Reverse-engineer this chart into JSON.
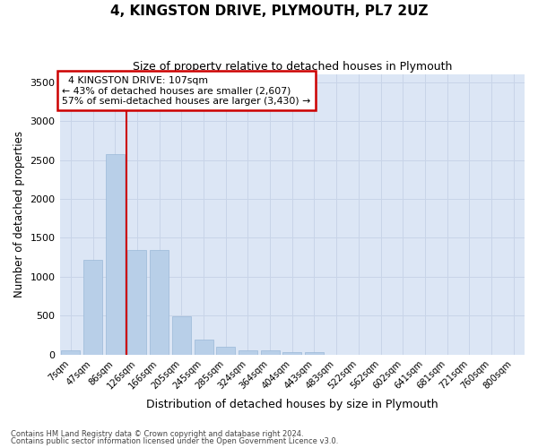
{
  "title1": "4, KINGSTON DRIVE, PLYMOUTH, PL7 2UZ",
  "title2": "Size of property relative to detached houses in Plymouth",
  "xlabel": "Distribution of detached houses by size in Plymouth",
  "ylabel": "Number of detached properties",
  "categories": [
    "7sqm",
    "47sqm",
    "86sqm",
    "126sqm",
    "166sqm",
    "205sqm",
    "245sqm",
    "285sqm",
    "324sqm",
    "364sqm",
    "404sqm",
    "443sqm",
    "483sqm",
    "522sqm",
    "562sqm",
    "602sqm",
    "641sqm",
    "681sqm",
    "721sqm",
    "760sqm",
    "800sqm"
  ],
  "values": [
    55,
    1220,
    2580,
    1340,
    1340,
    490,
    190,
    100,
    50,
    50,
    30,
    30,
    0,
    0,
    0,
    0,
    0,
    0,
    0,
    0,
    0
  ],
  "bar_color": "#b8cfe8",
  "bar_edge_color": "#9ab8d8",
  "grid_color": "#c8d4e8",
  "bg_color": "#dce6f5",
  "vline_x": 2.5,
  "vline_color": "#cc0000",
  "annotation_text": "  4 KINGSTON DRIVE: 107sqm\n← 43% of detached houses are smaller (2,607)\n57% of semi-detached houses are larger (3,430) →",
  "annotation_box_color": "#cc0000",
  "ylim": [
    0,
    3600
  ],
  "yticks": [
    0,
    500,
    1000,
    1500,
    2000,
    2500,
    3000,
    3500
  ],
  "footer1": "Contains HM Land Registry data © Crown copyright and database right 2024.",
  "footer2": "Contains public sector information licensed under the Open Government Licence v3.0."
}
